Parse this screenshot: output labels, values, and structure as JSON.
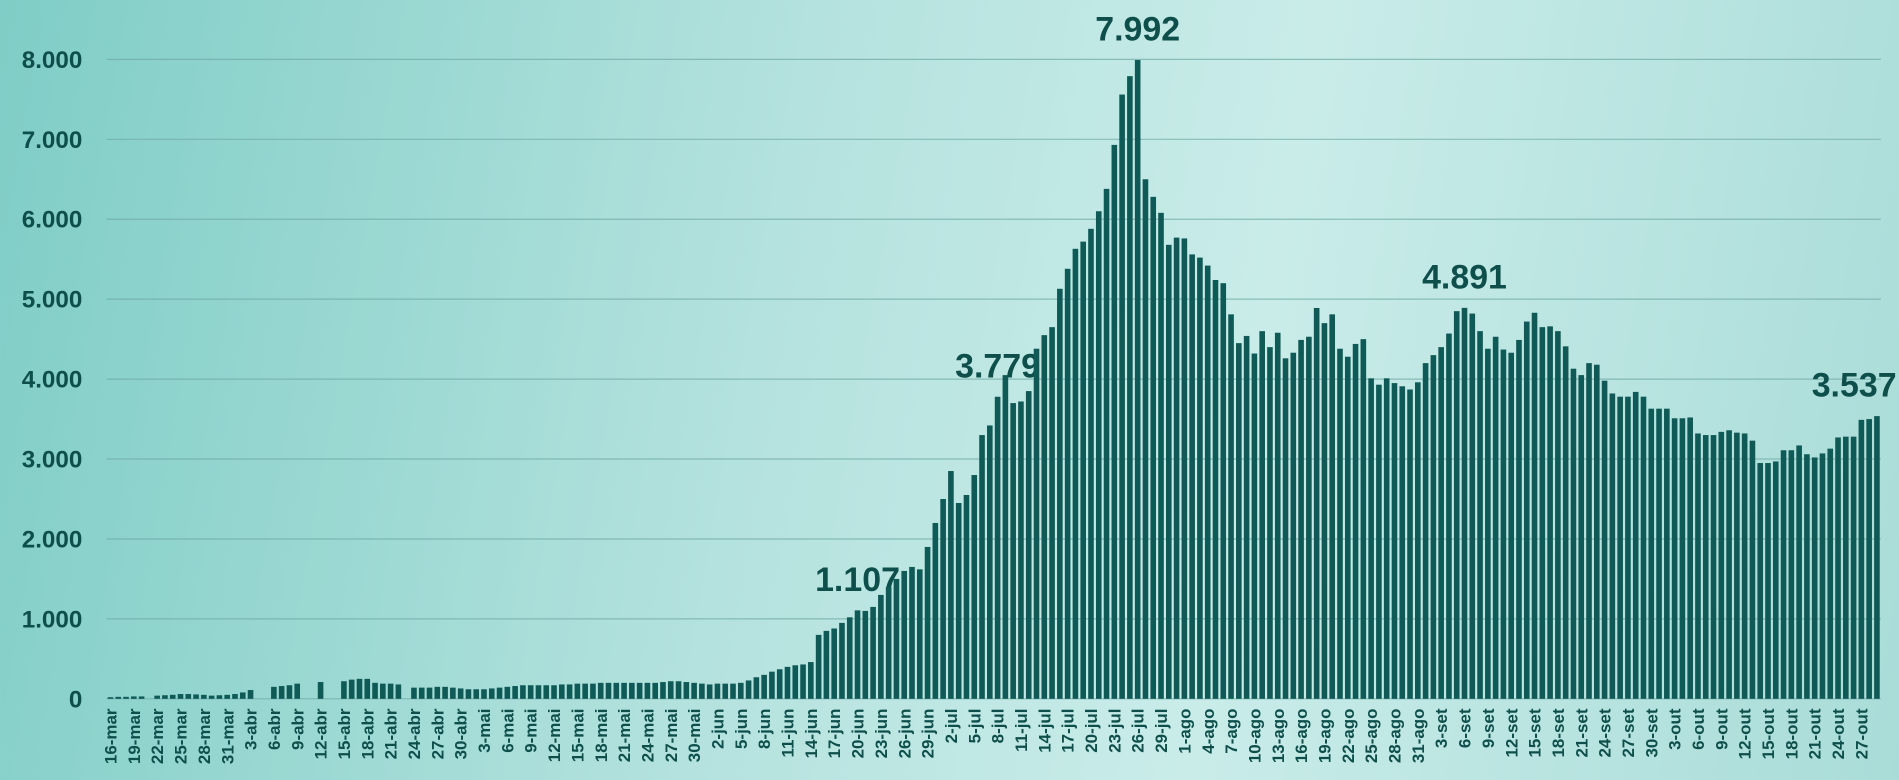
{
  "chart_data": {
    "type": "bar",
    "color": "#0f5a56",
    "grid": true,
    "ylim": [
      0,
      8000
    ],
    "yticks": [
      0,
      {
        "value": 1000,
        "label": "1.000"
      },
      {
        "value": 2000,
        "label": "2.000"
      },
      {
        "value": 3000,
        "label": "3.000"
      },
      {
        "value": 4000,
        "label": "4.000"
      },
      {
        "value": 5000,
        "label": "5.000"
      },
      {
        "value": 6000,
        "label": "6.000"
      },
      {
        "value": 7000,
        "label": "7.000"
      },
      {
        "value": 8000,
        "label": "8.000"
      }
    ],
    "categories": [
      "16-mar",
      null,
      null,
      "19-mar",
      null,
      null,
      "22-mar",
      null,
      null,
      "25-mar",
      null,
      null,
      "28-mar",
      null,
      null,
      "31-mar",
      null,
      null,
      "3-abr",
      null,
      null,
      "6-abr",
      null,
      null,
      "9-abr",
      null,
      null,
      "12-abr",
      null,
      null,
      "15-abr",
      null,
      null,
      "18-abr",
      null,
      null,
      "21-abr",
      null,
      null,
      "24-abr",
      null,
      null,
      "27-abr",
      null,
      null,
      "30-abr",
      null,
      null,
      "3-mai",
      null,
      null,
      "6-mai",
      null,
      null,
      "9-mai",
      null,
      null,
      "12-mai",
      null,
      null,
      "15-mai",
      null,
      null,
      "18-mai",
      null,
      null,
      "21-mai",
      null,
      null,
      "24-mai",
      null,
      null,
      "27-mai",
      null,
      null,
      "30-mai",
      null,
      null,
      "2-jun",
      null,
      null,
      "5-jun",
      null,
      null,
      "8-jun",
      null,
      null,
      "11-jun",
      null,
      null,
      "14-jun",
      null,
      null,
      "17-jun",
      null,
      null,
      "20-jun",
      null,
      null,
      "23-jun",
      null,
      null,
      "26-jun",
      null,
      null,
      "29-jun",
      null,
      null,
      "2-jul",
      null,
      null,
      "5-jul",
      null,
      null,
      "8-jul",
      null,
      null,
      "11-jul",
      null,
      null,
      "14-jul",
      null,
      null,
      "17-jul",
      null,
      null,
      "20-jul",
      null,
      null,
      "23-jul",
      null,
      null,
      "26-jul",
      null,
      null,
      "29-jul",
      null,
      null,
      "1-ago",
      null,
      null,
      "4-ago",
      null,
      null,
      "7-ago",
      null,
      null,
      "10-ago",
      null,
      null,
      "13-ago",
      null,
      null,
      "16-ago",
      null,
      null,
      "19-ago",
      null,
      null,
      "22-ago",
      null,
      null,
      "25-ago",
      null,
      null,
      "28-ago",
      null,
      null,
      "31-ago",
      null,
      null,
      "3-set",
      null,
      null,
      "6-set",
      null,
      null,
      "9-set",
      null,
      null,
      "12-set",
      null,
      null,
      "15-set",
      null,
      null,
      "18-set",
      null,
      null,
      "21-set",
      null,
      null,
      "24-set",
      null,
      null,
      "27-set",
      null,
      null,
      "30-set",
      null,
      null,
      "3-out",
      null,
      null,
      "6-out",
      null,
      null,
      "9-out",
      null,
      null,
      "12-out",
      null,
      null,
      "15-out",
      null,
      null,
      "18-out",
      null,
      null,
      "21-out",
      null,
      null,
      "24-out",
      null,
      null,
      "27-out",
      null,
      null
    ],
    "values": [
      20,
      25,
      25,
      30,
      30,
      0,
      40,
      45,
      50,
      60,
      60,
      55,
      50,
      40,
      45,
      50,
      60,
      80,
      110,
      0,
      0,
      150,
      160,
      170,
      190,
      0,
      0,
      210,
      0,
      0,
      220,
      240,
      250,
      250,
      200,
      190,
      190,
      180,
      0,
      140,
      140,
      140,
      150,
      150,
      140,
      130,
      120,
      120,
      120,
      130,
      140,
      150,
      160,
      170,
      170,
      170,
      170,
      170,
      180,
      180,
      190,
      190,
      190,
      200,
      200,
      200,
      200,
      200,
      200,
      200,
      200,
      210,
      220,
      220,
      210,
      200,
      190,
      180,
      190,
      190,
      190,
      200,
      230,
      270,
      300,
      340,
      370,
      400,
      420,
      430,
      460,
      800,
      850,
      880,
      950,
      1020,
      1107,
      1100,
      1150,
      1300,
      1400,
      1500,
      1600,
      1650,
      1620,
      1900,
      2200,
      2500,
      2850,
      2450,
      2550,
      2800,
      3300,
      3420,
      3779,
      4050,
      3700,
      3720,
      3850,
      4380,
      4550,
      4650,
      5130,
      5380,
      5630,
      5720,
      5880,
      6100,
      6380,
      6930,
      7560,
      7790,
      7992,
      6500,
      6280,
      6080,
      5680,
      5770,
      5760,
      5560,
      5520,
      5420,
      5240,
      5200,
      4810,
      4450,
      4540,
      4320,
      4600,
      4400,
      4580,
      4260,
      4330,
      4490,
      4530,
      4890,
      4700,
      4810,
      4380,
      4280,
      4440,
      4500,
      4010,
      3930,
      4010,
      3950,
      3910,
      3870,
      3960,
      4200,
      4300,
      4400,
      4570,
      4850,
      4891,
      4820,
      4600,
      4380,
      4530,
      4370,
      4330,
      4490,
      4720,
      4830,
      4650,
      4660,
      4600,
      4410,
      4130,
      4050,
      4200,
      4180,
      3980,
      3820,
      3780,
      3780,
      3840,
      3780,
      3630,
      3630,
      3630,
      3510,
      3510,
      3520,
      3320,
      3300,
      3300,
      3340,
      3360,
      3330,
      3320,
      3230,
      2950,
      2950,
      2970,
      3110,
      3110,
      3170,
      3060,
      3020,
      3070,
      3130,
      3270,
      3280,
      3280,
      3490,
      3500,
      3537
    ],
    "value_labels": [
      null,
      null,
      null,
      null,
      null,
      null,
      null,
      null,
      null,
      null,
      null,
      null,
      null,
      null,
      null,
      null,
      null,
      null,
      null,
      null,
      null,
      null,
      null,
      null,
      null,
      null,
      null,
      null,
      null,
      null,
      null,
      null,
      null,
      null,
      null,
      null,
      null,
      null,
      null,
      null,
      null,
      null,
      null,
      null,
      null,
      null,
      null,
      null,
      null,
      null,
      null,
      null,
      null,
      null,
      null,
      null,
      null,
      null,
      null,
      null,
      null,
      null,
      null,
      null,
      null,
      null,
      null,
      null,
      null,
      null,
      null,
      null,
      null,
      null,
      null,
      null,
      null,
      null,
      null,
      null,
      null,
      null,
      null,
      null,
      null,
      null,
      null,
      null,
      null,
      null,
      null,
      null,
      null,
      null,
      null,
      null,
      "1.107",
      null,
      null,
      null,
      null,
      null,
      null,
      null,
      null,
      null,
      null,
      null,
      null,
      null,
      null,
      null,
      null,
      null,
      "3.779",
      null,
      null,
      null,
      null,
      null,
      null,
      null,
      null,
      null,
      null,
      null,
      null,
      null,
      null,
      null,
      null,
      null,
      "7.992",
      null,
      null,
      null,
      null,
      null,
      null,
      null,
      null,
      null,
      null,
      null,
      null,
      null,
      null,
      null,
      null,
      null,
      null,
      null,
      null,
      null,
      null,
      null,
      null,
      null,
      null,
      null,
      null,
      null,
      null,
      null,
      null,
      null,
      null,
      null,
      null,
      null,
      null,
      null,
      null,
      null,
      "4.891",
      null,
      null,
      null,
      null,
      null,
      null,
      null,
      null,
      null,
      null,
      null,
      null,
      null,
      null,
      null,
      null,
      null,
      null,
      null,
      null,
      null,
      null,
      null,
      null,
      null,
      null,
      null,
      null,
      null,
      null,
      null,
      null,
      null,
      null,
      null,
      null,
      null,
      null,
      null,
      null,
      null,
      null,
      null,
      null,
      null,
      null,
      null,
      null,
      null,
      null,
      null,
      null,
      "3.537"
    ]
  }
}
